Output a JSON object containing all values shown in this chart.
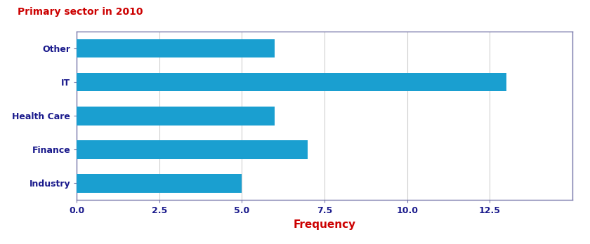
{
  "title": "Primary sector in 2010",
  "title_color": "#cc0000",
  "title_fontsize": 10,
  "categories": [
    "Industry",
    "Finance",
    "Health Care",
    "IT",
    "Other"
  ],
  "values": [
    5.0,
    7.0,
    6.0,
    13.0,
    6.0
  ],
  "bar_color": "#1a9fd0",
  "xlabel": "Frequency",
  "xlabel_color": "#cc0000",
  "xlabel_fontsize": 11,
  "tick_label_color": "#1a1a8c",
  "tick_label_fontsize": 9,
  "xlim": [
    0,
    15
  ],
  "xticks": [
    0.0,
    2.5,
    5.0,
    7.5,
    10.0,
    12.5
  ],
  "xtick_labels": [
    "0.0",
    "2.5",
    "5.0",
    "7.5",
    "10.0",
    "12.5"
  ],
  "grid_color": "#d0d0d0",
  "spine_color": "#7777aa",
  "background_color": "#ffffff",
  "bar_height": 0.55
}
